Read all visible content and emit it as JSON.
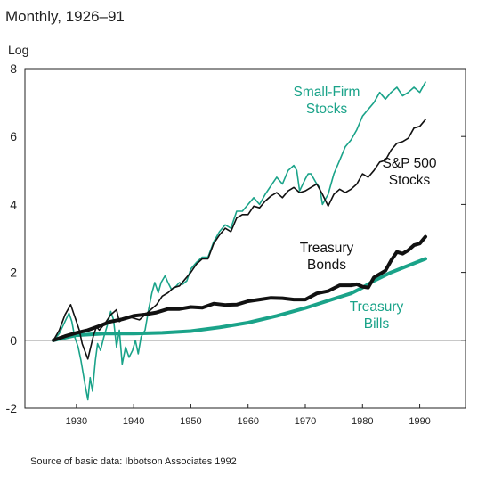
{
  "chart_data": {
    "type": "line",
    "subtitle": "Monthly, 1926–91",
    "ylabel": "Log",
    "source": "Source of basic data: Ibbotson Associates 1992",
    "xlim": [
      1921,
      1998
    ],
    "ylim": [
      -2,
      8
    ],
    "yticks": [
      -2,
      0,
      2,
      4,
      6,
      8
    ],
    "xticks": [
      1930,
      1940,
      1950,
      1960,
      1970,
      1980,
      1990
    ],
    "grid": false,
    "colors": {
      "green": "#1aa389",
      "black": "#111111"
    },
    "series": [
      {
        "name": "Small-Firm Stocks",
        "color": "#1aa389",
        "stroke": "thin",
        "label": [
          "Small-Firm",
          "Stocks"
        ],
        "x": [
          1926,
          1927,
          1928,
          1928.7,
          1929.2,
          1929.7,
          1930.3,
          1930.8,
          1931.5,
          1932,
          1932.4,
          1932.8,
          1933.3,
          1933.7,
          1934.2,
          1934.8,
          1935.5,
          1936,
          1936.5,
          1937,
          1937.5,
          1938,
          1938.6,
          1939.2,
          1939.8,
          1940.3,
          1940.8,
          1941.3,
          1942,
          1942.6,
          1943.2,
          1943.7,
          1944.3,
          1944.8,
          1945.5,
          1946,
          1946.6,
          1947.2,
          1948,
          1948.6,
          1949.3,
          1950,
          1951,
          1952,
          1953,
          1954,
          1955,
          1956,
          1957,
          1958,
          1959,
          1960,
          1961,
          1962,
          1963,
          1964,
          1965,
          1966,
          1967,
          1968,
          1968.5,
          1969,
          1970,
          1970.5,
          1971,
          1972,
          1972.5,
          1973,
          1974,
          1974.5,
          1975,
          1976,
          1977,
          1978,
          1979,
          1980,
          1981,
          1982,
          1983,
          1984,
          1985,
          1986,
          1987,
          1988,
          1989,
          1990,
          1991
        ],
        "values": [
          0.0,
          0.2,
          0.55,
          0.8,
          0.55,
          0.1,
          -0.2,
          -0.6,
          -1.3,
          -1.75,
          -1.1,
          -1.5,
          -0.6,
          -0.1,
          -0.3,
          0.1,
          0.5,
          0.85,
          0.6,
          -0.2,
          0.3,
          -0.7,
          -0.2,
          -0.5,
          -0.3,
          0.0,
          -0.4,
          0.1,
          0.3,
          0.9,
          1.4,
          1.7,
          1.4,
          1.7,
          1.9,
          1.7,
          1.5,
          1.55,
          1.7,
          1.65,
          1.75,
          2.1,
          2.3,
          2.45,
          2.45,
          2.9,
          3.2,
          3.4,
          3.3,
          3.8,
          3.8,
          4.0,
          4.2,
          4.0,
          4.3,
          4.55,
          4.8,
          4.6,
          5.0,
          5.15,
          5.0,
          4.4,
          4.75,
          4.9,
          4.9,
          4.6,
          4.5,
          4.0,
          4.3,
          4.6,
          4.9,
          5.3,
          5.7,
          5.9,
          6.2,
          6.6,
          6.8,
          7.0,
          7.3,
          7.1,
          7.3,
          7.45,
          7.2,
          7.3,
          7.45,
          7.3,
          7.6
        ]
      },
      {
        "name": "S&P 500 Stocks",
        "color": "#111111",
        "stroke": "thin",
        "label": [
          "S&P 500",
          "Stocks"
        ],
        "x": [
          1926,
          1927,
          1928,
          1929,
          1929.5,
          1930,
          1930.5,
          1931,
          1932,
          1932.5,
          1933,
          1933.5,
          1934,
          1935,
          1936,
          1937,
          1937.5,
          1938,
          1939,
          1940,
          1941,
          1942,
          1943,
          1944,
          1945,
          1946,
          1947,
          1948,
          1949,
          1950,
          1951,
          1952,
          1953,
          1954,
          1955,
          1956,
          1957,
          1958,
          1959,
          1960,
          1961,
          1962,
          1963,
          1964,
          1965,
          1966,
          1967,
          1968,
          1969,
          1970,
          1971,
          1972,
          1973,
          1974,
          1975,
          1976,
          1977,
          1978,
          1979,
          1980,
          1981,
          1982,
          1983,
          1984,
          1985,
          1986,
          1987,
          1988,
          1989,
          1990,
          1991
        ],
        "values": [
          0.0,
          0.3,
          0.75,
          1.05,
          0.8,
          0.55,
          0.3,
          -0.1,
          -0.55,
          -0.2,
          0.15,
          0.4,
          0.3,
          0.5,
          0.75,
          0.9,
          0.55,
          0.6,
          0.7,
          0.65,
          0.6,
          0.75,
          0.9,
          1.05,
          1.3,
          1.4,
          1.55,
          1.6,
          1.8,
          2.0,
          2.25,
          2.4,
          2.4,
          2.85,
          3.1,
          3.3,
          3.2,
          3.6,
          3.7,
          3.7,
          3.95,
          3.9,
          4.1,
          4.25,
          4.35,
          4.2,
          4.4,
          4.5,
          4.35,
          4.4,
          4.5,
          4.6,
          4.3,
          3.95,
          4.3,
          4.45,
          4.35,
          4.45,
          4.6,
          4.9,
          4.8,
          5.0,
          5.25,
          5.3,
          5.6,
          5.8,
          5.85,
          5.95,
          6.25,
          6.3,
          6.5
        ]
      },
      {
        "name": "Treasury Bonds",
        "color": "#111111",
        "stroke": "thick",
        "label": [
          "Treasury",
          "Bonds"
        ],
        "x": [
          1926,
          1928,
          1930,
          1932,
          1934,
          1936,
          1938,
          1940,
          1942,
          1944,
          1946,
          1948,
          1950,
          1952,
          1954,
          1956,
          1958,
          1960,
          1962,
          1964,
          1966,
          1968,
          1970,
          1972,
          1974,
          1976,
          1978,
          1979,
          1980,
          1981,
          1982,
          1983,
          1984,
          1985,
          1986,
          1987,
          1988,
          1989,
          1990,
          1991
        ],
        "values": [
          0.0,
          0.12,
          0.22,
          0.3,
          0.42,
          0.55,
          0.62,
          0.72,
          0.76,
          0.82,
          0.92,
          0.92,
          0.98,
          0.96,
          1.08,
          1.04,
          1.05,
          1.15,
          1.2,
          1.25,
          1.24,
          1.2,
          1.2,
          1.38,
          1.45,
          1.62,
          1.62,
          1.65,
          1.58,
          1.55,
          1.85,
          1.95,
          2.05,
          2.35,
          2.6,
          2.55,
          2.65,
          2.8,
          2.85,
          3.05
        ]
      },
      {
        "name": "Treasury Bills",
        "color": "#1aa389",
        "stroke": "thick",
        "label": [
          "Treasury",
          "Bills"
        ],
        "x": [
          1926,
          1930,
          1935,
          1940,
          1945,
          1950,
          1955,
          1960,
          1965,
          1970,
          1975,
          1978,
          1980,
          1982,
          1985,
          1988,
          1991
        ],
        "values": [
          0.0,
          0.15,
          0.2,
          0.2,
          0.22,
          0.27,
          0.38,
          0.52,
          0.72,
          0.95,
          1.22,
          1.38,
          1.55,
          1.75,
          2.0,
          2.2,
          2.4
        ]
      }
    ]
  }
}
